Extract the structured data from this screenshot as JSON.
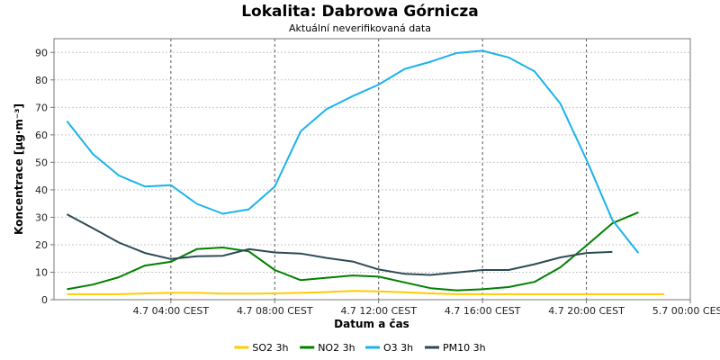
{
  "chart_data": {
    "type": "line",
    "title": "Lokalita: Dabrowa Górnicza",
    "subtitle": "Aktuální neverifikovaná data",
    "xlabel": "Datum a čas",
    "ylabel": "Koncentrace [µg·m⁻³]",
    "x_start_hour": 0,
    "x_step_hours": 1,
    "xlim": [
      -0.5,
      24
    ],
    "ylim": [
      0,
      95
    ],
    "y_ticks": [
      0,
      10,
      20,
      30,
      40,
      50,
      60,
      70,
      80,
      90
    ],
    "x_ticks": [
      {
        "at": 4,
        "label": "4.7 04:00 CEST"
      },
      {
        "at": 8,
        "label": "4.7 08:00 CEST"
      },
      {
        "at": 12,
        "label": "4.7 12:00 CEST"
      },
      {
        "at": 16,
        "label": "4.7 16:00 CEST"
      },
      {
        "at": 20,
        "label": "4.7 20:00 CEST"
      },
      {
        "at": 24,
        "label": "5.7 00:00 CEST"
      }
    ],
    "grid": true,
    "legend_position": "bottom",
    "series": [
      {
        "name": "SO2 3h",
        "color": "#ffcc00",
        "values": [
          2,
          2,
          2,
          2.3,
          2.5,
          2.5,
          2.2,
          2.2,
          2.3,
          2.5,
          2.8,
          3.2,
          3.0,
          2.7,
          2.3,
          2.0,
          2.0,
          2.0,
          2.0,
          2.0,
          2.0,
          2.0,
          2.0,
          2.0
        ]
      },
      {
        "name": "NO2 3h",
        "color": "#008000",
        "values": [
          3.8,
          5.5,
          8.2,
          12.4,
          13.8,
          18.4,
          19.0,
          17.6,
          10.8,
          7.1,
          8.0,
          8.8,
          8.4,
          6.3,
          4.2,
          3.4,
          3.8,
          4.6,
          6.5,
          11.8,
          19.7,
          27.8,
          31.8,
          null
        ]
      },
      {
        "name": "O3 3h",
        "color": "#1ab3ec",
        "values": [
          65,
          53,
          45.2,
          41.2,
          41.7,
          34.9,
          31.3,
          32.9,
          41.2,
          61.3,
          69.4,
          74.1,
          78.3,
          84,
          86.6,
          89.8,
          90.6,
          88.2,
          83.1,
          71.3,
          51,
          29,
          17,
          null
        ]
      },
      {
        "name": "PM10 3h",
        "color": "#2e4a55",
        "values": [
          31.1,
          26.0,
          20.8,
          17.0,
          14.8,
          15.8,
          16.0,
          18.4,
          17.2,
          16.8,
          15.2,
          13.9,
          11.0,
          9.4,
          9.0,
          9.9,
          10.8,
          10.8,
          12.9,
          15.4,
          17.0,
          17.4,
          null,
          null
        ]
      }
    ]
  }
}
